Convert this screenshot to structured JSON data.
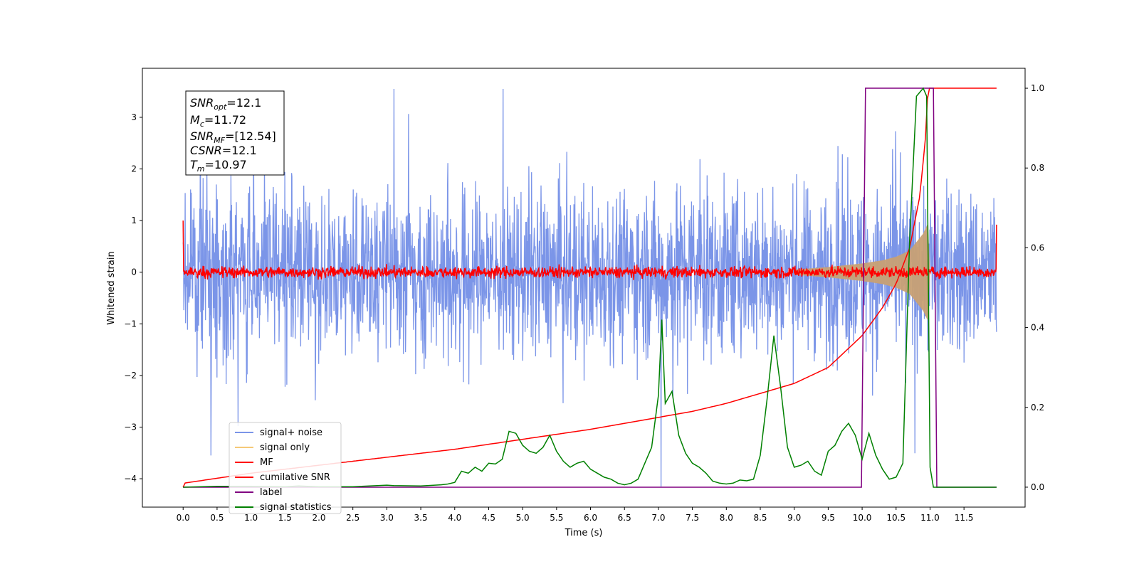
{
  "chart_data": {
    "type": "line",
    "xlabel": "Time (s)",
    "ylabel": "Whitened strain",
    "xlim": [
      -0.6,
      12.4
    ],
    "ylim": [
      -4.55,
      3.95
    ],
    "y2lim": [
      -0.05,
      1.05
    ],
    "x_ticks": [
      0.0,
      0.5,
      1.0,
      1.5,
      2.0,
      2.5,
      3.0,
      3.5,
      4.0,
      4.5,
      5.0,
      5.5,
      6.0,
      6.5,
      7.0,
      7.5,
      8.0,
      8.5,
      9.0,
      9.5,
      10.0,
      10.5,
      11.0,
      11.5
    ],
    "x_tick_labels": [
      "0.0",
      "0.5",
      "1.0",
      "1.5",
      "2.0",
      "2.5",
      "3.0",
      "3.5",
      "4.0",
      "4.5",
      "5.0",
      "5.5",
      "6.0",
      "6.5",
      "7.0",
      "7.5",
      "8.0",
      "8.5",
      "9.0",
      "9.5",
      "10.0",
      "10.5",
      "11.0",
      "11.5"
    ],
    "y_ticks": [
      3,
      2,
      1,
      0,
      -1,
      -2,
      -3,
      -4
    ],
    "y_tick_labels": [
      "3",
      "2",
      "1",
      "0",
      "−1",
      "−2",
      "−3",
      "−4"
    ],
    "y2_ticks": [
      1.0,
      0.8,
      0.6,
      0.4,
      0.2,
      0.0
    ],
    "y2_tick_labels": [
      "1.0",
      "0.8",
      "0.6",
      "0.4",
      "0.2",
      "0.0"
    ],
    "grid": false,
    "legend_position": "lower-left",
    "annotation": {
      "lines": [
        {
          "name": "SNR",
          "sub": "opt",
          "value": "=12.1"
        },
        {
          "name": "M",
          "sub": "c",
          "value": "=11.72"
        },
        {
          "name": "SNR",
          "sub": "MF",
          "value": "=[12.54]"
        },
        {
          "name": "CSNR",
          "sub": "",
          "value": "=12.1"
        },
        {
          "name": "T",
          "sub": "m",
          "value": "=10.97"
        }
      ]
    },
    "series": [
      {
        "name": "signal+ noise",
        "axis": "left",
        "color": "#7b95e8",
        "description": "noise band, roughly ±2 with spikes to about ±3.5 over 0–12 s",
        "range_t": [
          0.0,
          11.98
        ],
        "typical_amplitude": 1.3,
        "peak_amplitude": 3.55,
        "dip_at": 7.04,
        "dip_value": -4.15
      },
      {
        "name": "signal only",
        "axis": "left",
        "color": "#f5c978",
        "description": "chirp growing toward merger",
        "envelope_t": [
          9.0,
          9.5,
          10.0,
          10.3,
          10.5,
          10.7,
          10.9,
          10.97,
          11.0
        ],
        "envelope_amp": [
          0.05,
          0.1,
          0.17,
          0.23,
          0.3,
          0.42,
          0.75,
          0.95,
          0.0
        ]
      },
      {
        "name": "MF",
        "axis": "left",
        "color": "#ff0000",
        "description": "matched filter output, small band around 0",
        "range_t": [
          0.0,
          11.98
        ],
        "start_value": 1.0,
        "end_value": 0.92,
        "typical_amplitude": 0.12
      },
      {
        "name": "cumilative SNR",
        "axis": "right",
        "color": "#ff0000",
        "t": [
          0.0,
          0.01,
          1.0,
          2.0,
          3.0,
          4.0,
          5.0,
          6.0,
          7.0,
          7.5,
          8.0,
          8.5,
          9.0,
          9.5,
          10.0,
          10.3,
          10.5,
          10.7,
          10.85,
          10.93,
          10.97,
          11.0,
          11.98
        ],
        "v": [
          0.0,
          0.01,
          0.035,
          0.055,
          0.075,
          0.095,
          0.12,
          0.145,
          0.175,
          0.19,
          0.21,
          0.235,
          0.26,
          0.3,
          0.38,
          0.45,
          0.51,
          0.6,
          0.73,
          0.87,
          1.0,
          1.0,
          1.0
        ]
      },
      {
        "name": "label",
        "axis": "right",
        "color": "#800080",
        "t": [
          0.0,
          9.99,
          10.05,
          11.05,
          11.1,
          11.98
        ],
        "v": [
          0.0,
          0.0,
          1.0,
          1.0,
          0.0,
          0.0
        ]
      },
      {
        "name": "signal statistics",
        "axis": "right",
        "color": "#008000",
        "t": [
          0.0,
          0.5,
          1.0,
          1.5,
          1.7,
          2.0,
          2.5,
          3.0,
          3.1,
          3.5,
          3.8,
          3.9,
          4.0,
          4.1,
          4.2,
          4.3,
          4.4,
          4.5,
          4.6,
          4.7,
          4.8,
          4.9,
          5.0,
          5.1,
          5.2,
          5.3,
          5.4,
          5.5,
          5.6,
          5.7,
          5.8,
          5.9,
          6.0,
          6.1,
          6.2,
          6.3,
          6.4,
          6.5,
          6.6,
          6.7,
          6.8,
          6.9,
          7.0,
          7.05,
          7.1,
          7.2,
          7.3,
          7.4,
          7.5,
          7.6,
          7.7,
          7.8,
          7.9,
          8.0,
          8.1,
          8.2,
          8.3,
          8.4,
          8.5,
          8.6,
          8.7,
          8.8,
          8.9,
          9.0,
          9.1,
          9.2,
          9.3,
          9.4,
          9.5,
          9.6,
          9.7,
          9.8,
          9.9,
          10.0,
          10.1,
          10.2,
          10.3,
          10.4,
          10.5,
          10.6,
          10.7,
          10.8,
          10.9,
          10.95,
          11.0,
          11.05,
          11.1,
          11.98
        ],
        "v": [
          0.0,
          0.002,
          0.002,
          0.001,
          0.003,
          0.001,
          0.001,
          0.005,
          0.004,
          0.003,
          0.006,
          0.008,
          0.012,
          0.04,
          0.035,
          0.05,
          0.04,
          0.06,
          0.058,
          0.07,
          0.14,
          0.135,
          0.105,
          0.09,
          0.085,
          0.1,
          0.13,
          0.09,
          0.065,
          0.05,
          0.06,
          0.065,
          0.045,
          0.035,
          0.025,
          0.02,
          0.01,
          0.006,
          0.01,
          0.02,
          0.06,
          0.1,
          0.23,
          0.42,
          0.21,
          0.24,
          0.13,
          0.085,
          0.06,
          0.05,
          0.035,
          0.015,
          0.01,
          0.008,
          0.01,
          0.018,
          0.016,
          0.02,
          0.08,
          0.22,
          0.38,
          0.25,
          0.1,
          0.05,
          0.055,
          0.065,
          0.04,
          0.03,
          0.09,
          0.105,
          0.14,
          0.16,
          0.13,
          0.07,
          0.135,
          0.08,
          0.045,
          0.02,
          0.025,
          0.06,
          0.62,
          0.98,
          1.0,
          0.98,
          0.05,
          0.0,
          0.0,
          0.0
        ]
      }
    ]
  }
}
